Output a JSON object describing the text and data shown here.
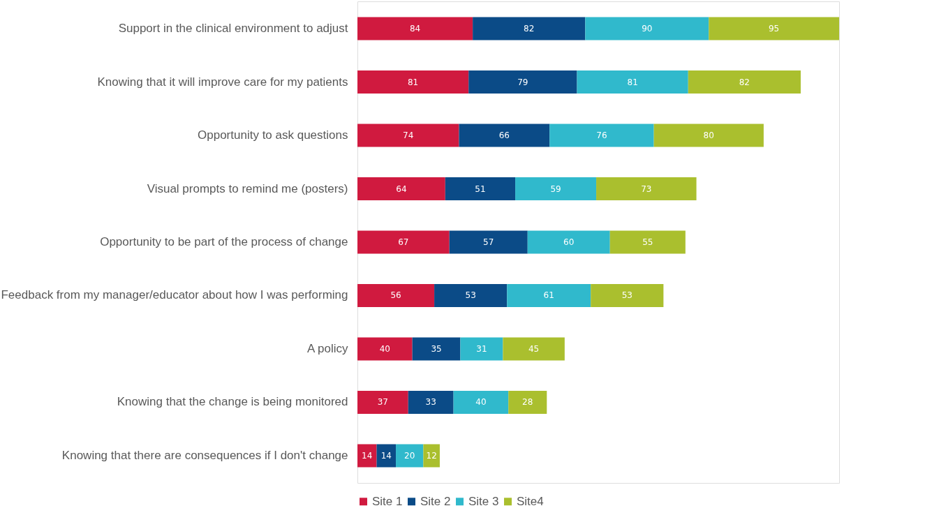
{
  "chart_data": {
    "type": "bar",
    "orientation": "horizontal",
    "stacked": true,
    "data_labels": true,
    "legend": "bottom",
    "grid": false,
    "categories": [
      "Support in the clinical environment to adjust",
      "Knowing that it will improve care for my patients",
      "Opportunity to ask questions",
      "Visual prompts to remind me (posters)",
      "Opportunity to be part of the process of change",
      "Feedback from my manager/educator about how I was performing",
      "A policy",
      "Knowing that the change is being monitored",
      "Knowing that there are consequences if I don't change"
    ],
    "series": [
      {
        "name": "Site 1",
        "color": "#d01a3f",
        "values": [
          84,
          81,
          74,
          64,
          67,
          56,
          40,
          37,
          14
        ]
      },
      {
        "name": "Site 2",
        "color": "#0b4b87",
        "values": [
          82,
          79,
          66,
          51,
          57,
          53,
          35,
          33,
          14
        ]
      },
      {
        "name": "Site 3",
        "color": "#30b9cc",
        "values": [
          90,
          81,
          76,
          59,
          60,
          61,
          31,
          40,
          20
        ]
      },
      {
        "name": "Site4",
        "color": "#aabf2e",
        "values": [
          95,
          82,
          80,
          73,
          55,
          53,
          45,
          28,
          12
        ]
      }
    ]
  }
}
